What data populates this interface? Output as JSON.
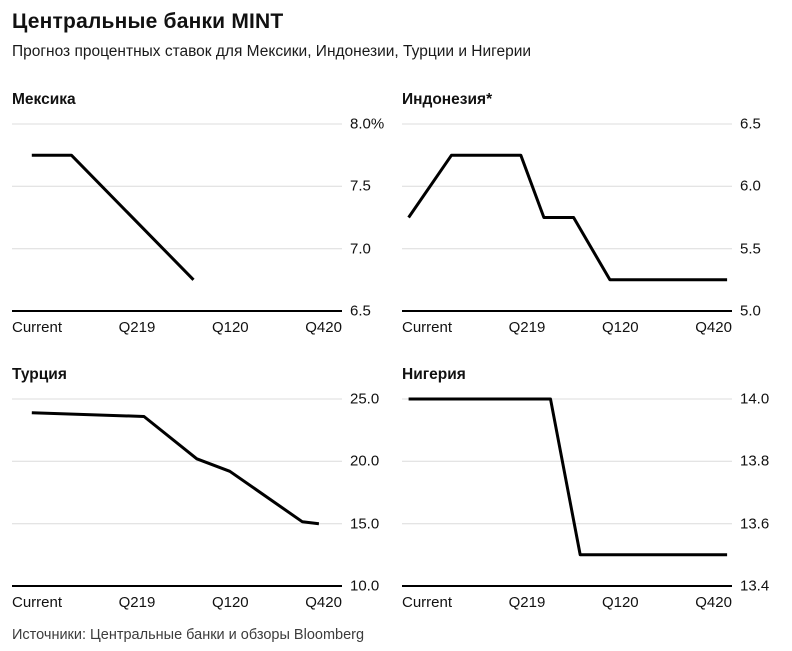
{
  "header": {
    "title": "Центральные банки MINT",
    "subtitle": "Прогноз процентных ставок для Мексики, Индонезии, Турции и Нигерии"
  },
  "footer": {
    "source": "Источники: Центральные банки и обзоры Bloomberg"
  },
  "colors": {
    "line": "#000000",
    "grid": "#dcdcdc",
    "axis": "#000000"
  },
  "chart_data": [
    {
      "type": "line",
      "title": "Мексика",
      "unit": "%",
      "ylim": [
        6.5,
        8.0
      ],
      "yticks": [
        {
          "value": 8.0,
          "label": "8.0%"
        },
        {
          "value": 7.5,
          "label": "7.5"
        },
        {
          "value": 7.0,
          "label": "7.0"
        },
        {
          "value": 6.5,
          "label": "6.5"
        }
      ],
      "xticks": [
        "Current",
        "Q219",
        "Q120",
        "Q420"
      ],
      "x_encoding": "x is fraction of the horizontal time axis from Current (0) to Q420 (1)",
      "line_color": "#000000",
      "points": [
        {
          "x": 0.06,
          "y": 7.75
        },
        {
          "x": 0.18,
          "y": 7.75
        },
        {
          "x": 0.55,
          "y": 6.75
        }
      ]
    },
    {
      "type": "line",
      "title": "Индонезия*",
      "unit": "%",
      "ylim": [
        5.0,
        6.5
      ],
      "yticks": [
        {
          "value": 6.5,
          "label": "6.5"
        },
        {
          "value": 6.0,
          "label": "6.0"
        },
        {
          "value": 5.5,
          "label": "5.5"
        },
        {
          "value": 5.0,
          "label": "5.0"
        }
      ],
      "xticks": [
        "Current",
        "Q219",
        "Q120",
        "Q420"
      ],
      "x_encoding": "x is fraction of the horizontal time axis from Current (0) to Q420 (1)",
      "line_color": "#000000",
      "points": [
        {
          "x": 0.02,
          "y": 5.75
        },
        {
          "x": 0.15,
          "y": 6.25
        },
        {
          "x": 0.36,
          "y": 6.25
        },
        {
          "x": 0.43,
          "y": 5.75
        },
        {
          "x": 0.52,
          "y": 5.75
        },
        {
          "x": 0.63,
          "y": 5.25
        },
        {
          "x": 0.985,
          "y": 5.25
        }
      ]
    },
    {
      "type": "line",
      "title": "Турция",
      "unit": "%",
      "ylim": [
        10.0,
        25.0
      ],
      "yticks": [
        {
          "value": 25.0,
          "label": "25.0"
        },
        {
          "value": 20.0,
          "label": "20.0"
        },
        {
          "value": 15.0,
          "label": "15.0"
        },
        {
          "value": 10.0,
          "label": "10.0"
        }
      ],
      "xticks": [
        "Current",
        "Q219",
        "Q120",
        "Q420"
      ],
      "x_encoding": "x is fraction of the horizontal time axis from Current (0) to Q420 (1)",
      "line_color": "#000000",
      "points": [
        {
          "x": 0.06,
          "y": 23.9
        },
        {
          "x": 0.4,
          "y": 23.6
        },
        {
          "x": 0.56,
          "y": 20.2
        },
        {
          "x": 0.66,
          "y": 19.2
        },
        {
          "x": 0.88,
          "y": 15.15
        },
        {
          "x": 0.93,
          "y": 15.0
        }
      ]
    },
    {
      "type": "line",
      "title": "Нигерия",
      "unit": "%",
      "ylim": [
        13.4,
        14.0
      ],
      "yticks": [
        {
          "value": 14.0,
          "label": "14.0"
        },
        {
          "value": 13.8,
          "label": "13.8"
        },
        {
          "value": 13.6,
          "label": "13.6"
        },
        {
          "value": 13.4,
          "label": "13.4"
        }
      ],
      "xticks": [
        "Current",
        "Q219",
        "Q120",
        "Q420"
      ],
      "x_encoding": "x is fraction of the horizontal time axis from Current (0) to Q420 (1)",
      "line_color": "#000000",
      "points": [
        {
          "x": 0.02,
          "y": 14.0
        },
        {
          "x": 0.45,
          "y": 14.0
        },
        {
          "x": 0.54,
          "y": 13.5
        },
        {
          "x": 0.985,
          "y": 13.5
        }
      ]
    }
  ]
}
